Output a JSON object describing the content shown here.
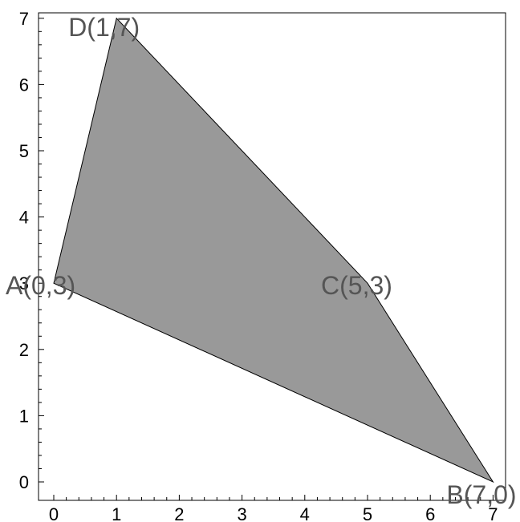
{
  "chart_data": {
    "type": "polygon",
    "xlim": [
      0,
      7
    ],
    "ylim": [
      0,
      7
    ],
    "x_ticks": [
      0,
      1,
      2,
      3,
      4,
      5,
      6,
      7
    ],
    "y_ticks": [
      0,
      1,
      2,
      3,
      4,
      5,
      6,
      7
    ],
    "fill_color": "#999999",
    "label_color": "#555555",
    "vertices": [
      {
        "name": "A",
        "x": 0,
        "y": 3,
        "label": "A(0,3)"
      },
      {
        "name": "B",
        "x": 7,
        "y": 0,
        "label": "B(7,0)"
      },
      {
        "name": "C",
        "x": 5,
        "y": 3,
        "label": "C(5,3)"
      },
      {
        "name": "D",
        "x": 1,
        "y": 7,
        "label": "D(1,7)"
      }
    ]
  }
}
